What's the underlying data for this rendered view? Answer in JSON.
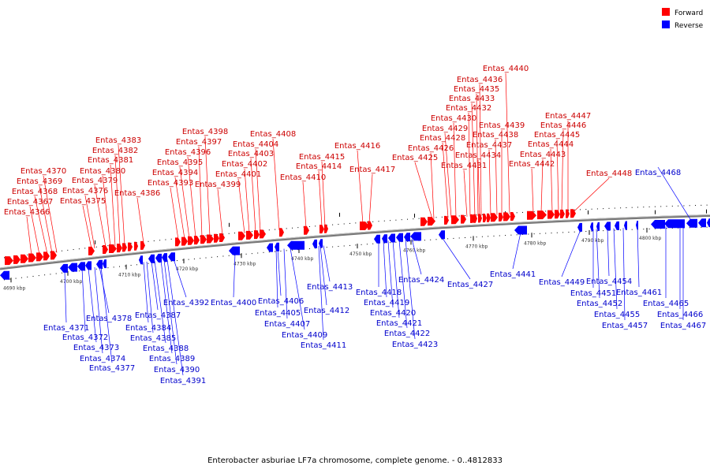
{
  "legend": [
    {
      "label": "Forward",
      "color": "#ff0000"
    },
    {
      "label": "Reverse",
      "color": "#0000ff"
    }
  ],
  "caption": "Enterobacter asburiae LF7a chromosome, complete genome. - 0..4812833",
  "colors": {
    "forward": "#ff0000",
    "reverse": "#0000ff",
    "forward_text": "#cc0000",
    "reverse_text": "#0000cc",
    "backbone": "#888888"
  },
  "ticks": [
    "4690 kbp",
    "4700 kbp",
    "4710 kbp",
    "4720 kbp",
    "4730 kbp",
    "4740 kbp",
    "4750 kbp",
    "4760 kbp",
    "4770 kbp",
    "4780 kbp",
    "4790 kbp",
    "4800 kbp"
  ],
  "forward_labels": [
    "Entas_4366",
    "Entas_4367",
    "Entas_4368",
    "Entas_4369",
    "Entas_4370",
    "Entas_4375",
    "Entas_4376",
    "Entas_4379",
    "Entas_4380",
    "Entas_4381",
    "Entas_4382",
    "Entas_4383",
    "Entas_4386",
    "Entas_4393",
    "Entas_4394",
    "Entas_4395",
    "Entas_4396",
    "Entas_4397",
    "Entas_4398",
    "Entas_4399",
    "Entas_4401",
    "Entas_4402",
    "Entas_4403",
    "Entas_4404",
    "Entas_4408",
    "Entas_4410",
    "Entas_4414",
    "Entas_4415",
    "Entas_4416",
    "Entas_4417",
    "Entas_4425",
    "Entas_4426",
    "Entas_4428",
    "Entas_4429",
    "Entas_4430",
    "Entas_4431",
    "Entas_4432",
    "Entas_4433",
    "Entas_4434",
    "Entas_4435",
    "Entas_4436",
    "Entas_4437",
    "Entas_4438",
    "Entas_4439",
    "Entas_4440",
    "Entas_4442",
    "Entas_4443",
    "Entas_4444",
    "Entas_4445",
    "Entas_4446",
    "Entas_4447",
    "Entas_4448"
  ],
  "reverse_labels": [
    "Entas_4371",
    "Entas_4372",
    "Entas_4373",
    "Entas_4374",
    "Entas_4377",
    "Entas_4378",
    "Entas_4384",
    "Entas_4385",
    "Entas_4387",
    "Entas_4388",
    "Entas_4389",
    "Entas_4390",
    "Entas_4391",
    "Entas_4392",
    "Entas_4400",
    "Entas_4405",
    "Entas_4406",
    "Entas_4407",
    "Entas_4409",
    "Entas_4411",
    "Entas_4412",
    "Entas_4413",
    "Entas_4418",
    "Entas_4419",
    "Entas_4420",
    "Entas_4421",
    "Entas_4422",
    "Entas_4423",
    "Entas_4424",
    "Entas_4427",
    "Entas_4441",
    "Entas_4449",
    "Entas_4451",
    "Entas_4452",
    "Entas_4454",
    "Entas_4455",
    "Entas_4457",
    "Entas_4461",
    "Entas_4465",
    "Entas_4466",
    "Entas_4467",
    "Entas_4468"
  ]
}
